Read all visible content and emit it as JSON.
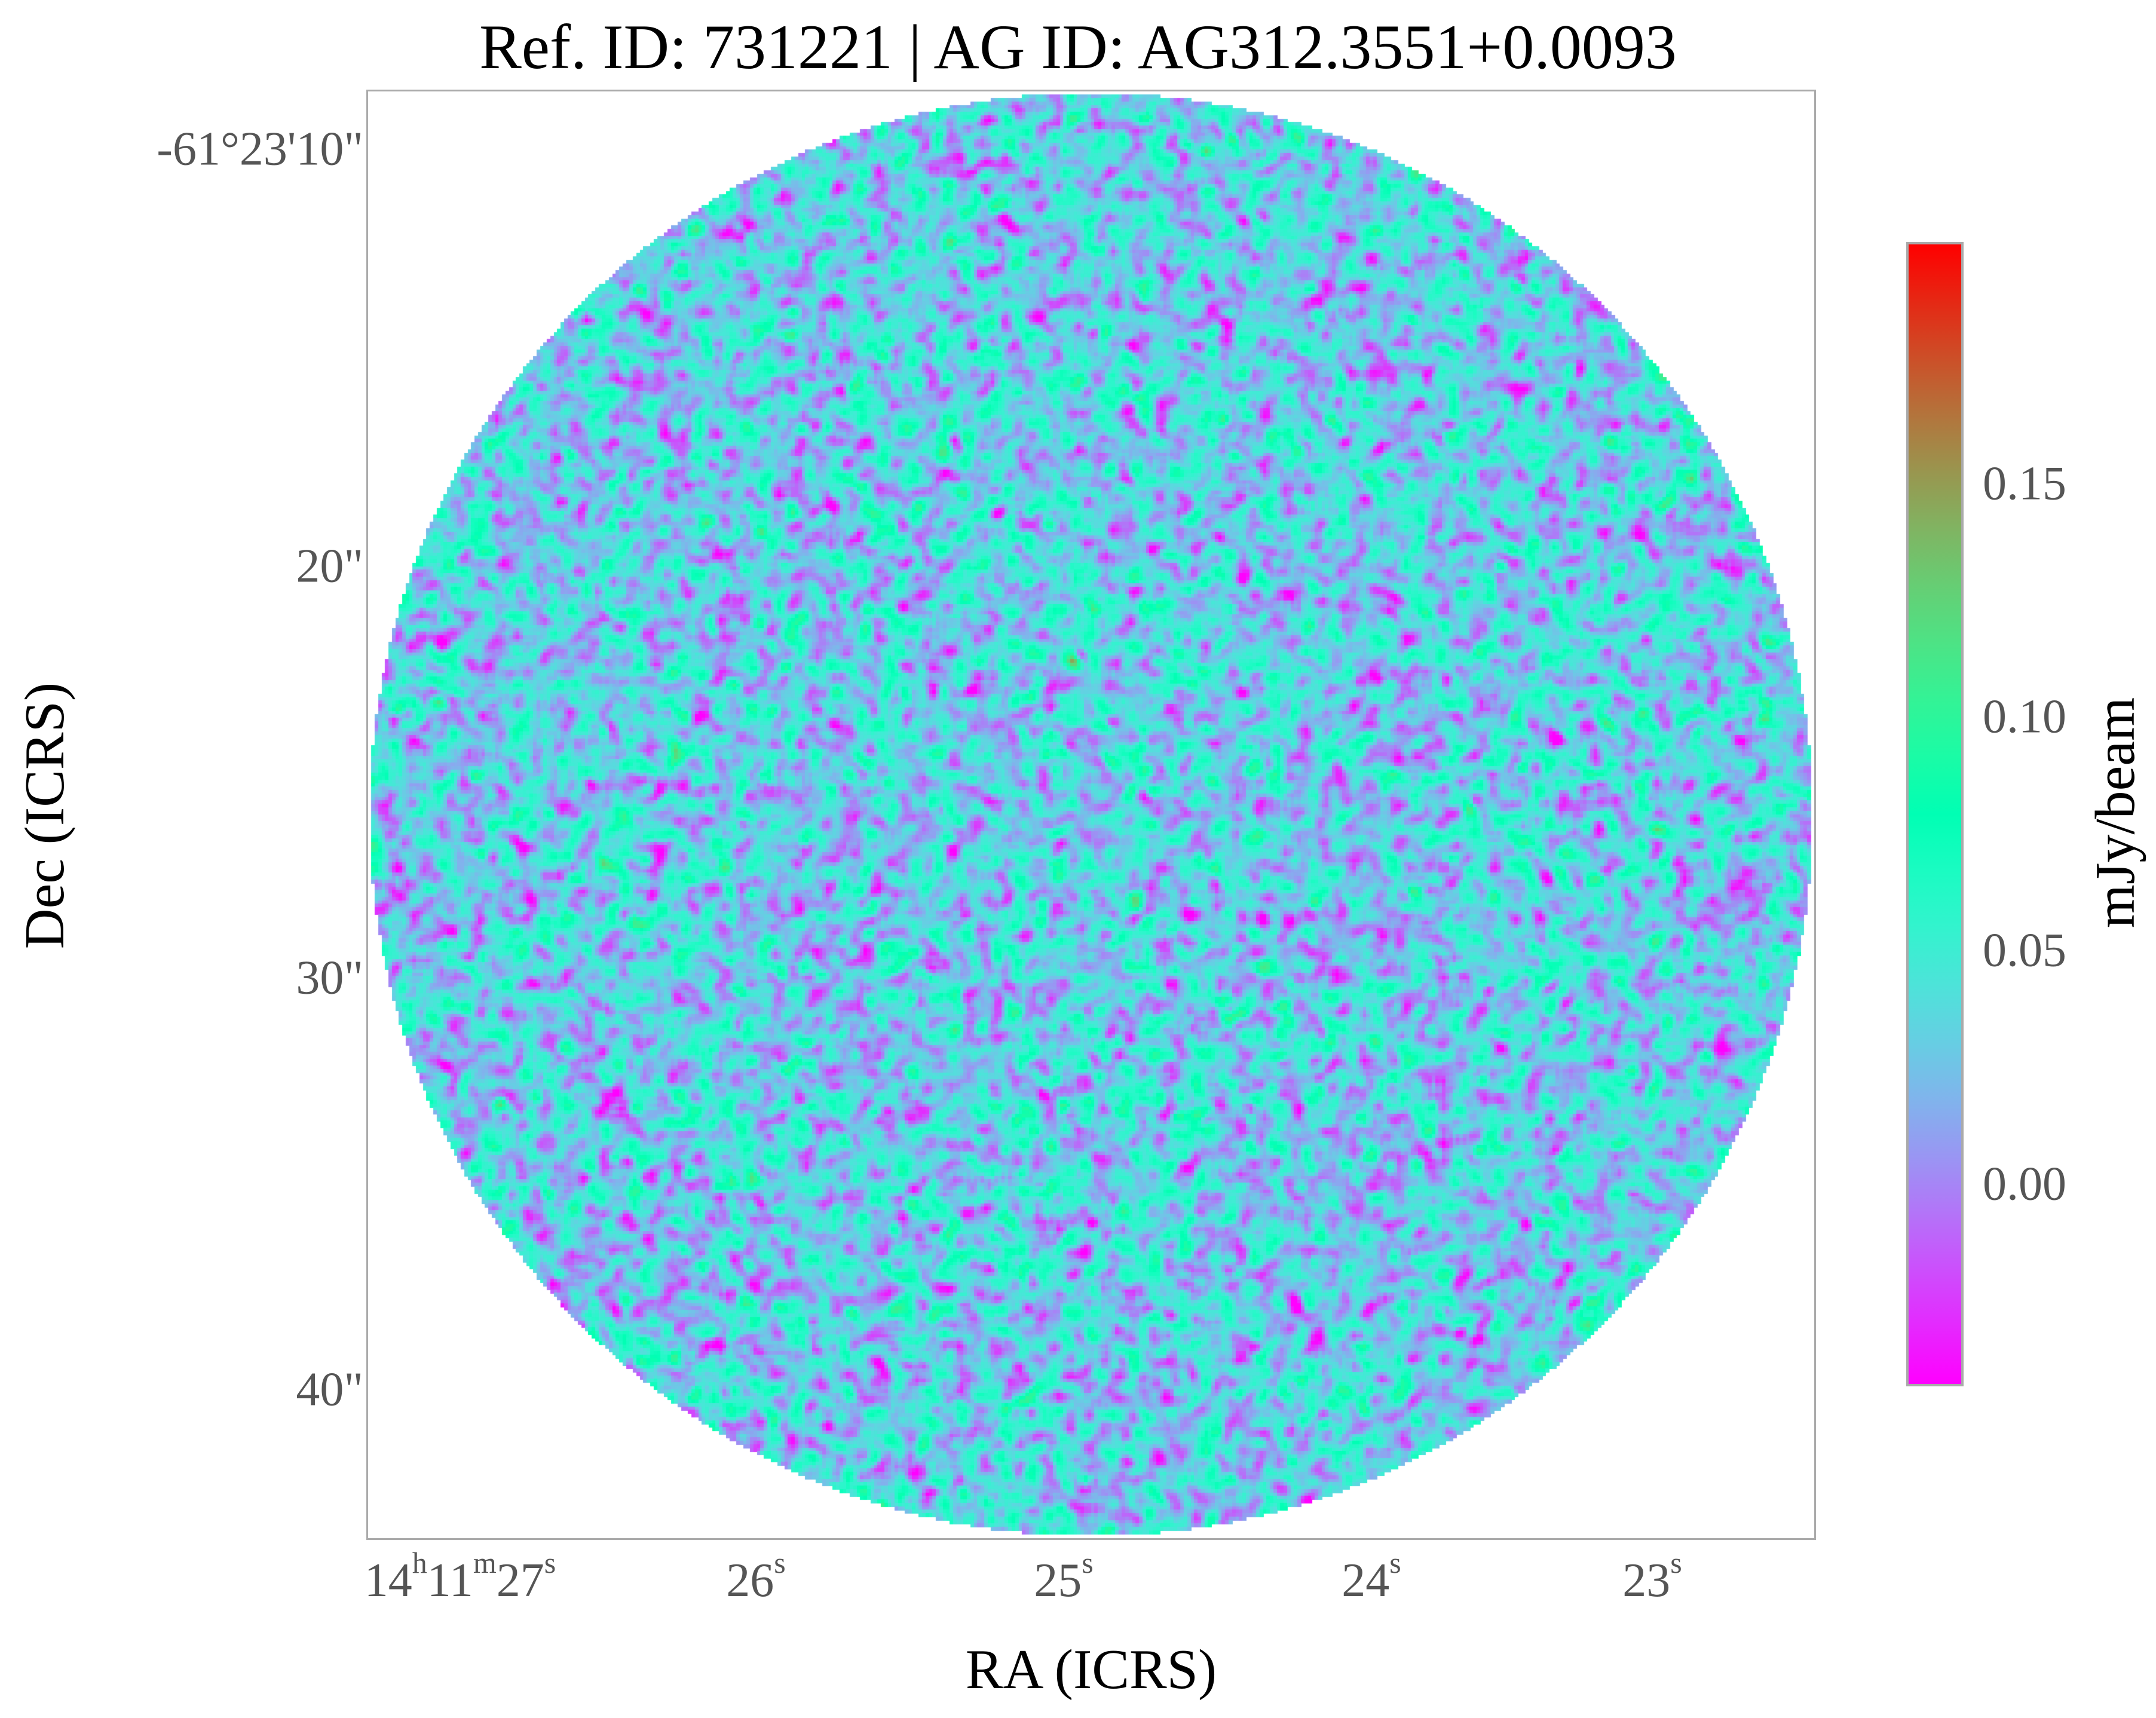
{
  "chart_data": {
    "type": "heatmap",
    "title": "Ref. ID: 731221 | AG ID: AG312.3551+0.0093",
    "xlabel": "RA (ICRS)",
    "ylabel": "Dec (ICRS)",
    "x_ticks": [
      {
        "h": "14",
        "m": "11",
        "s": "27",
        "label_main": "14",
        "label_h": "h",
        "label_main2": "11",
        "label_m": "m",
        "label_main3": "27",
        "label_s": "s"
      },
      {
        "label_main": "26",
        "label_s": "s"
      },
      {
        "label_main": "25",
        "label_s": "s"
      },
      {
        "label_main": "24",
        "label_s": "s"
      },
      {
        "label_main": "23",
        "label_s": "s"
      }
    ],
    "y_ticks": [
      "-61°23'10\"",
      "20\"",
      "30\"",
      "40\""
    ],
    "colorbar": {
      "label": "mJy/beam",
      "colormap": "rainbow",
      "range": [
        -0.043,
        0.2
      ],
      "ticks": [
        "0.15",
        "0.10",
        "0.05",
        "0.00"
      ],
      "tick_values": [
        0.15,
        0.1,
        0.05,
        0.0
      ]
    },
    "image": {
      "shape": "circular field, noise-dominated",
      "mean": 0.03,
      "std": 0.045
    },
    "grid": false,
    "colors": {
      "frame": "#aaaaaa",
      "tick_text": "#555555"
    }
  }
}
